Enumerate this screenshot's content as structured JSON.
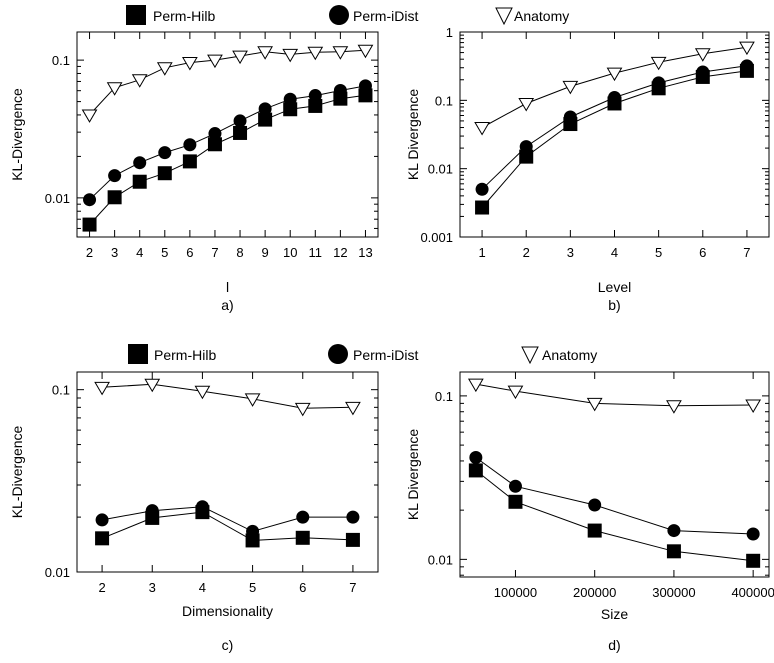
{
  "legend": {
    "items": [
      {
        "label": "Perm-Hilb",
        "marker": "square"
      },
      {
        "label": "Perm-iDist",
        "marker": "circle"
      },
      {
        "label": "Anatomy",
        "marker": "triangle-down-open"
      }
    ]
  },
  "chart_data": [
    {
      "type": "line",
      "panel": "a)",
      "xlabel": "l",
      "ylabel": "KL-Divergence",
      "yscale": "log",
      "xlim": [
        1.5,
        13.5
      ],
      "ylim": [
        0.0052,
        0.16
      ],
      "x_ticks": [
        2,
        3,
        4,
        5,
        6,
        7,
        8,
        9,
        10,
        11,
        12,
        13
      ],
      "y_ticks": [
        {
          "v": 0.01,
          "label": "0.01"
        },
        {
          "v": 0.1,
          "label": "0.1"
        }
      ],
      "x": [
        2,
        3,
        4,
        5,
        6,
        7,
        8,
        9,
        10,
        11,
        12,
        13
      ],
      "series": [
        {
          "name": "Perm-Hilb",
          "marker": "square",
          "values": [
            0.0064,
            0.0101,
            0.0131,
            0.0151,
            0.0184,
            0.0245,
            0.0296,
            0.037,
            0.044,
            0.0465,
            0.0525,
            0.0555
          ]
        },
        {
          "name": "Perm-iDist",
          "marker": "circle",
          "values": [
            0.0097,
            0.0145,
            0.018,
            0.0213,
            0.0243,
            0.0293,
            0.0362,
            0.0443,
            0.052,
            0.0553,
            0.0602,
            0.065
          ]
        },
        {
          "name": "Anatomy",
          "marker": "triangle-down-open",
          "values": [
            0.04,
            0.063,
            0.072,
            0.088,
            0.096,
            0.1,
            0.107,
            0.115,
            0.11,
            0.114,
            0.115,
            0.118
          ]
        }
      ]
    },
    {
      "type": "line",
      "panel": "b)",
      "xlabel": "Level",
      "ylabel": "KL Divergence",
      "yscale": "log",
      "xlim": [
        0.5,
        7.5
      ],
      "ylim": [
        0.001,
        1
      ],
      "x_ticks": [
        1,
        2,
        3,
        4,
        5,
        6,
        7
      ],
      "y_ticks": [
        {
          "v": 0.001,
          "label": "0.001"
        },
        {
          "v": 0.01,
          "label": "0.01"
        },
        {
          "v": 0.1,
          "label": "0.1"
        },
        {
          "v": 1,
          "label": "1"
        }
      ],
      "x": [
        1,
        2,
        3,
        4,
        5,
        6,
        7
      ],
      "series": [
        {
          "name": "Perm-Hilb",
          "marker": "square",
          "values": [
            0.0027,
            0.015,
            0.045,
            0.09,
            0.15,
            0.22,
            0.27
          ]
        },
        {
          "name": "Perm-iDist",
          "marker": "circle",
          "values": [
            0.005,
            0.021,
            0.057,
            0.11,
            0.18,
            0.26,
            0.32
          ]
        },
        {
          "name": "Anatomy",
          "marker": "triangle-down-open",
          "values": [
            0.04,
            0.09,
            0.16,
            0.25,
            0.36,
            0.48,
            0.6
          ]
        }
      ]
    },
    {
      "type": "line",
      "panel": "c)",
      "xlabel": "Dimensionality",
      "ylabel": "KL-Divergence",
      "yscale": "log",
      "xlim": [
        1.5,
        7.5
      ],
      "ylim": [
        0.01,
        0.125
      ],
      "x_ticks": [
        2,
        3,
        4,
        5,
        6,
        7
      ],
      "y_ticks": [
        {
          "v": 0.01,
          "label": "0.01"
        },
        {
          "v": 0.1,
          "label": "0.1"
        }
      ],
      "x": [
        2,
        3,
        4,
        5,
        6,
        7
      ],
      "series": [
        {
          "name": "Perm-Hilb",
          "marker": "square",
          "values": [
            0.0153,
            0.0198,
            0.0213,
            0.0149,
            0.0154,
            0.015
          ]
        },
        {
          "name": "Perm-iDist",
          "marker": "circle",
          "values": [
            0.0193,
            0.0217,
            0.0228,
            0.0167,
            0.02,
            0.02
          ]
        },
        {
          "name": "Anatomy",
          "marker": "triangle-down-open",
          "values": [
            0.103,
            0.107,
            0.098,
            0.089,
            0.079,
            0.08
          ]
        }
      ]
    },
    {
      "type": "line",
      "panel": "d)",
      "xlabel": "Size",
      "ylabel": "KL Divergence",
      "yscale": "log",
      "xlim": [
        30000,
        420000
      ],
      "ylim": [
        0.0078,
        0.14
      ],
      "x_ticks": [
        100000,
        200000,
        300000,
        400000
      ],
      "y_ticks": [
        {
          "v": 0.01,
          "label": "0.01"
        },
        {
          "v": 0.1,
          "label": "0.1"
        }
      ],
      "x": [
        50000,
        100000,
        200000,
        300000,
        400000
      ],
      "series": [
        {
          "name": "Perm-Hilb",
          "marker": "square",
          "values": [
            0.035,
            0.0225,
            0.015,
            0.0112,
            0.0098
          ]
        },
        {
          "name": "Perm-iDist",
          "marker": "circle",
          "values": [
            0.042,
            0.028,
            0.0215,
            0.015,
            0.0143
          ]
        },
        {
          "name": "Anatomy",
          "marker": "triangle-down-open",
          "values": [
            0.118,
            0.107,
            0.09,
            0.087,
            0.088
          ]
        }
      ]
    }
  ]
}
